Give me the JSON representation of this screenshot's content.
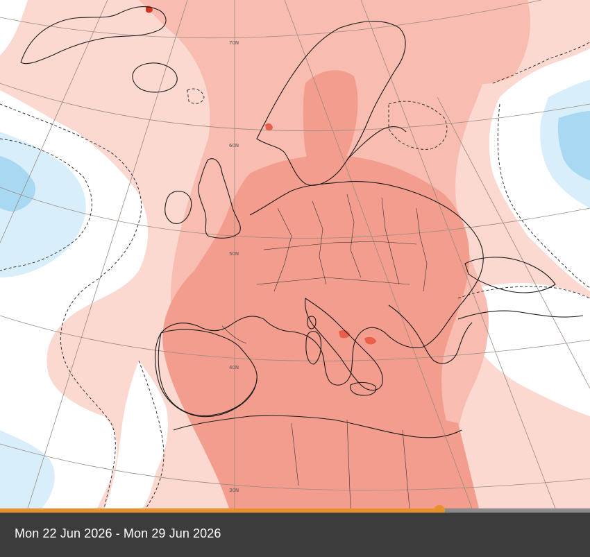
{
  "map": {
    "latitude_labels": [
      "70N",
      "60N",
      "50N",
      "40N",
      "30N"
    ],
    "colors": {
      "very_light_warm": "#fbd8d0",
      "light_warm": "#f8bcb0",
      "warm": "#f29d8d",
      "hot": "#e8604a",
      "very_hot": "#d53220",
      "light_cool": "#d8eefb",
      "cool": "#a9d8f3",
      "cold": "#7cc2ec",
      "neutral": "#ffffff",
      "coastline": "#1a1a1a",
      "graticule": "#9a8a80"
    }
  },
  "timeline": {
    "progress": 0.745,
    "date_range": "Mon 22 Jun 2026 - Mon 29 Jun 2026",
    "colors": {
      "fill": "#e8912c",
      "track": "#8a8a8a",
      "bar": "#3c3c3c"
    }
  }
}
